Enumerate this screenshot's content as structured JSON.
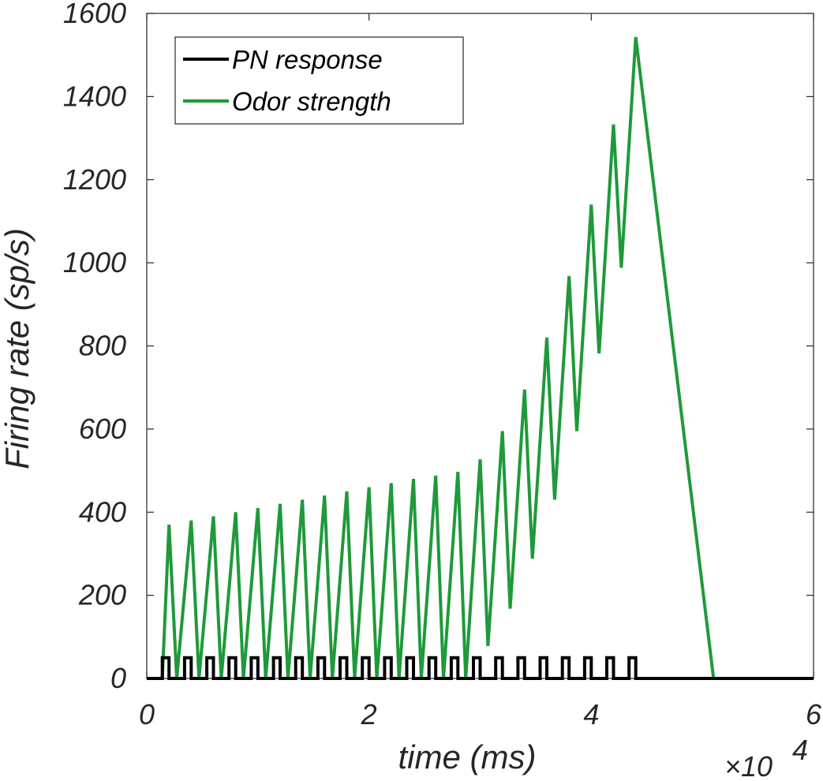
{
  "chart_data": {
    "type": "line",
    "title": "",
    "xlabel": "time (ms)",
    "ylabel": "Firing rate (sp/s)",
    "x_exponent_label": "×10",
    "x_exponent_power": "4",
    "xlim": [
      0,
      60000
    ],
    "ylim": [
      0,
      1600
    ],
    "xticks": [
      0,
      20000,
      40000,
      60000
    ],
    "xtick_labels": [
      "0",
      "2",
      "4",
      "6"
    ],
    "yticks": [
      0,
      200,
      400,
      600,
      800,
      1000,
      1200,
      1400,
      1600
    ],
    "ytick_labels": [
      "0",
      "200",
      "400",
      "600",
      "800",
      "1000",
      "1200",
      "1400",
      "1600"
    ],
    "grid": false,
    "legend_position": "top-left",
    "series": [
      {
        "name": "PN response",
        "color": "#000000",
        "x": [
          0,
          1400,
          1400,
          2000,
          2000,
          3400,
          3400,
          4000,
          4000,
          5400,
          5400,
          6000,
          6000,
          7400,
          7400,
          8000,
          8000,
          9400,
          9400,
          10000,
          10000,
          11400,
          11400,
          12000,
          12000,
          13400,
          13400,
          14000,
          14000,
          15400,
          15400,
          16000,
          16000,
          17400,
          17400,
          18000,
          18000,
          19400,
          19400,
          20000,
          20000,
          21400,
          21400,
          22000,
          22000,
          23400,
          23400,
          24000,
          24000,
          25400,
          25400,
          26000,
          26000,
          27400,
          27400,
          28000,
          28000,
          29400,
          29400,
          30000,
          30000,
          31400,
          31400,
          32000,
          32000,
          33400,
          33400,
          34000,
          34000,
          35400,
          35400,
          36000,
          36000,
          37400,
          37400,
          38000,
          38000,
          39400,
          39400,
          40000,
          40000,
          41400,
          41400,
          42000,
          42000,
          43400,
          43400,
          44000,
          44000,
          60000
        ],
        "y": [
          0,
          0,
          50,
          50,
          0,
          0,
          50,
          50,
          0,
          0,
          50,
          50,
          0,
          0,
          50,
          50,
          0,
          0,
          50,
          50,
          0,
          0,
          50,
          50,
          0,
          0,
          50,
          50,
          0,
          0,
          50,
          50,
          0,
          0,
          50,
          50,
          0,
          0,
          50,
          50,
          0,
          0,
          50,
          50,
          0,
          0,
          50,
          50,
          0,
          0,
          50,
          50,
          0,
          0,
          50,
          50,
          0,
          0,
          50,
          50,
          0,
          0,
          50,
          50,
          0,
          0,
          50,
          50,
          0,
          0,
          50,
          50,
          0,
          0,
          50,
          50,
          0,
          0,
          50,
          50,
          0,
          0,
          50,
          50,
          0,
          0,
          50,
          50,
          0,
          0
        ]
      },
      {
        "name": "Odor strength",
        "color": "#1e9a3a",
        "x": [
          0,
          1400,
          2000,
          2700,
          4000,
          4700,
          6000,
          6700,
          8000,
          8700,
          10000,
          10700,
          12000,
          12700,
          14000,
          14700,
          16000,
          16700,
          18000,
          18700,
          20000,
          20700,
          22000,
          22700,
          24000,
          24700,
          26000,
          26700,
          28000,
          28700,
          30000,
          30700,
          32000,
          32700,
          34000,
          34700,
          36000,
          36700,
          38000,
          38700,
          40000,
          40700,
          42000,
          42700,
          44000,
          51000,
          60000
        ],
        "y": [
          0,
          0,
          370,
          0,
          380,
          0,
          390,
          0,
          400,
          0,
          410,
          0,
          420,
          0,
          430,
          0,
          440,
          0,
          450,
          0,
          460,
          0,
          470,
          0,
          480,
          0,
          488,
          0,
          497,
          0,
          527,
          78,
          595,
          168,
          695,
          288,
          820,
          430,
          968,
          595,
          1140,
          782,
          1333,
          988,
          1543,
          0,
          0
        ]
      }
    ]
  }
}
